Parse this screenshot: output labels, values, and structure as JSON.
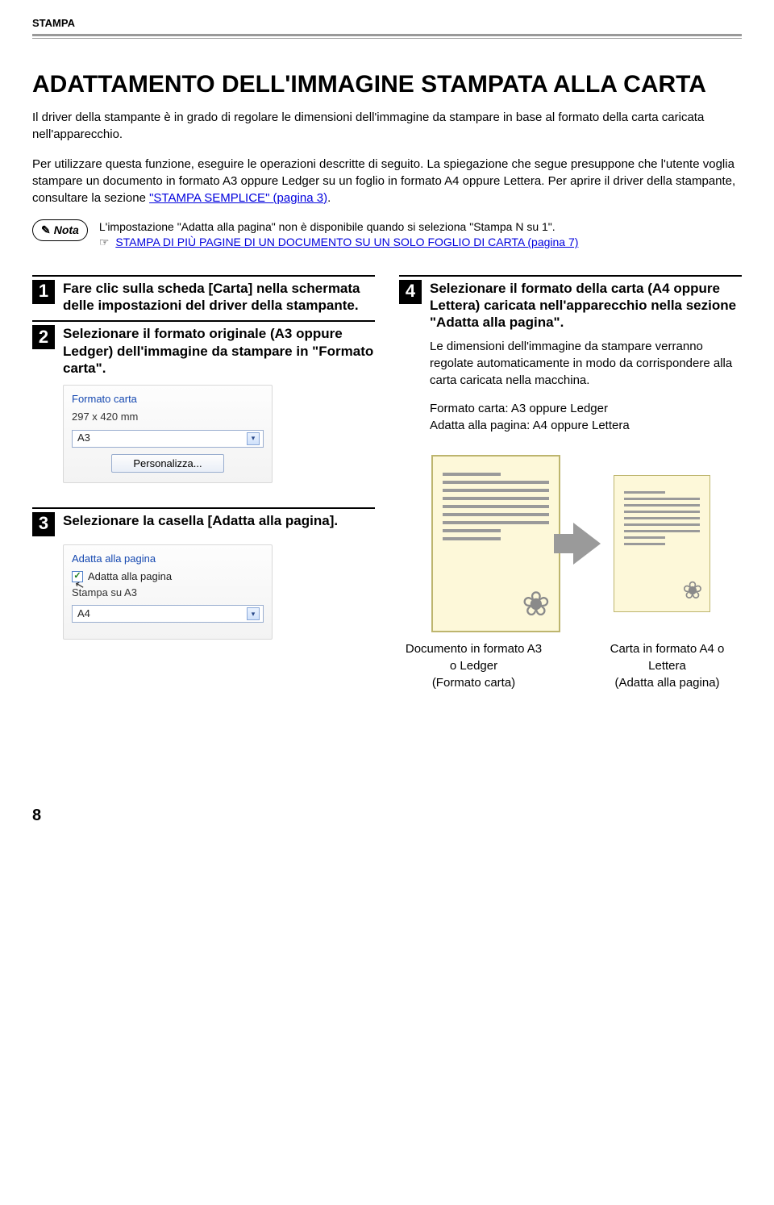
{
  "header": {
    "section": "STAMPA"
  },
  "title": "ADATTAMENTO DELL'IMMAGINE STAMPATA ALLA CARTA",
  "intro": {
    "p1": "Il driver della stampante è in grado di regolare le dimensioni dell'immagine da stampare in base al formato della carta caricata nell'apparecchio.",
    "p2a": "Per utilizzare questa funzione, eseguire le operazioni descritte di seguito. La spiegazione che segue presuppone che l'utente voglia stampare un documento in formato A3 oppure Ledger su un foglio in formato A4 oppure Lettera. Per aprire il driver della stampante, consultare la sezione ",
    "p2link": "\"STAMPA SEMPLICE\" (pagina 3)",
    "p2b": "."
  },
  "nota": {
    "label": "Nota",
    "line1": "L'impostazione \"Adatta alla pagina\" non è disponibile quando si seleziona \"Stampa N su 1\".",
    "pointer": "☞",
    "link": "STAMPA DI PIÙ PAGINE DI UN DOCUMENTO SU UN SOLO FOGLIO DI CARTA (pagina 7)"
  },
  "steps": {
    "s1": {
      "num": "1",
      "title": "Fare clic sulla scheda [Carta] nella schermata delle impostazioni del driver della stampante."
    },
    "s2": {
      "num": "2",
      "title": "Selezionare il formato originale (A3 oppure Ledger) dell'immagine da stampare in \"Formato carta\"."
    },
    "s3": {
      "num": "3",
      "title": "Selezionare la casella [Adatta alla pagina]."
    },
    "s4": {
      "num": "4",
      "title": "Selezionare il formato della carta (A4 oppure Lettera) caricata nell'apparecchio nella sezione \"Adatta alla pagina\".",
      "body": "Le dimensioni dell'immagine da stampare verranno regolate automaticamente in modo da corrispondere alla carta caricata nella macchina.",
      "summary1": "Formato carta: A3 oppure Ledger",
      "summary2": "Adatta alla pagina: A4 oppure Lettera"
    }
  },
  "ui1": {
    "group": "Formato carta",
    "dims": "297 x 420 mm",
    "select_value": "A3",
    "button": "Personalizza..."
  },
  "ui2": {
    "group": "Adatta alla pagina",
    "check_label": "Adatta alla pagina",
    "check_mark": "✓",
    "static": "Stampa su A3",
    "select_value": "A4"
  },
  "captions": {
    "left1": "Documento in formato A3 o Ledger",
    "left2": "(Formato carta)",
    "right1": "Carta in formato A4 o Lettera",
    "right2": "(Adatta alla pagina)"
  },
  "page_number": "8",
  "colors": {
    "link": "#0000dd",
    "panel_border": "#d8d8d8",
    "group_label": "#1548b0",
    "doc_bg": "#fdf8d9",
    "doc_border": "#bdb56e",
    "grey": "#9a9a9a"
  }
}
